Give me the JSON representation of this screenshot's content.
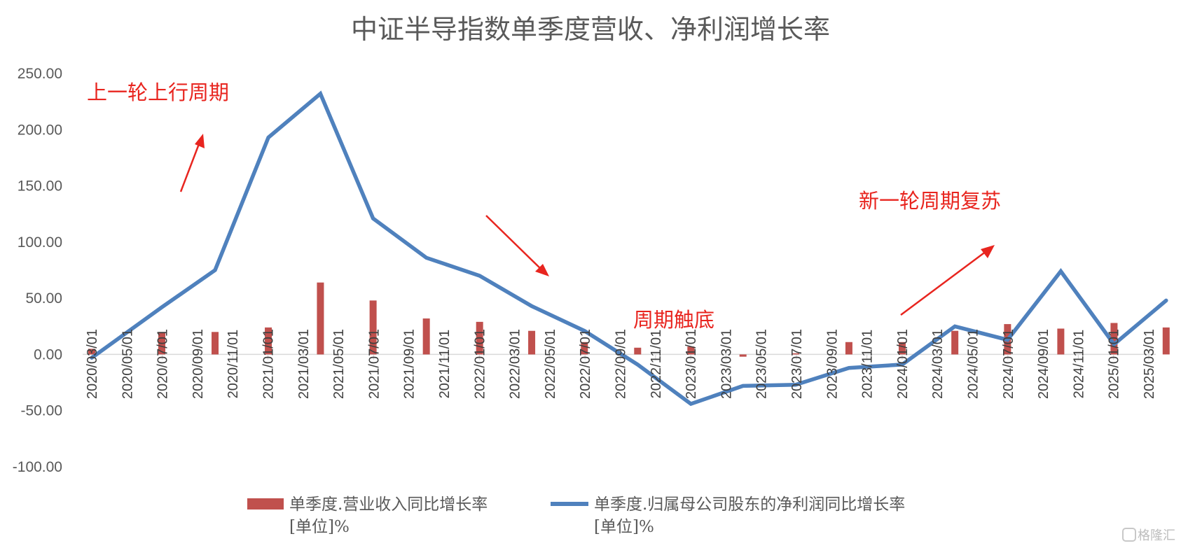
{
  "chart_data": {
    "type": "bar+line",
    "title": "中证半导指数单季度营收、净利润增长率",
    "ylim": [
      -100,
      250
    ],
    "yticks": [
      "250.00",
      "200.00",
      "150.00",
      "100.00",
      "50.00",
      "0.00",
      "-50.00",
      "-100.00"
    ],
    "ytick_values": [
      250,
      200,
      150,
      100,
      50,
      0,
      -50,
      -100
    ],
    "x_labels": [
      "2020/03/01",
      "2020/05/01",
      "2020/07/01",
      "2020/09/01",
      "2020/11/01",
      "2021/01/01",
      "2021/03/01",
      "2021/05/01",
      "2021/07/01",
      "2021/09/01",
      "2021/11/01",
      "2022/01/01",
      "2022/03/01",
      "2022/05/01",
      "2022/07/01",
      "2022/09/01",
      "2022/11/01",
      "2023/01/01",
      "2023/03/01",
      "2023/05/01",
      "2023/07/01",
      "2023/09/01",
      "2023/11/01",
      "2024/01/01",
      "2024/03/01",
      "2024/05/01",
      "2024/07/01",
      "2024/09/01",
      "2024/11/01",
      "2025/01/01",
      "2025/03/01"
    ],
    "grid": false,
    "legend_position": "bottom",
    "series": [
      {
        "name": "单季度.营业收入同比增长率 [单位]%",
        "legend_line1": "单季度.营业收入同比增长率",
        "legend_line2": "[单位]%",
        "type": "bar",
        "color": "#c0504d",
        "x": [
          "2020/03/01",
          "2020/06/30",
          "2020/09/30",
          "2020/12/31",
          "2021/03/31",
          "2021/06/30",
          "2021/09/30",
          "2021/12/31",
          "2022/03/31",
          "2022/06/30",
          "2022/09/30",
          "2022/12/31",
          "2023/03/31",
          "2023/06/30",
          "2023/09/30",
          "2023/12/31",
          "2024/03/31",
          "2024/06/30",
          "2024/09/30",
          "2024/12/31",
          "2025/03/31"
        ],
        "values": [
          5,
          20,
          20,
          24,
          64,
          48,
          32,
          29,
          21,
          11,
          6,
          7,
          -2,
          1,
          11,
          11,
          21,
          27,
          23,
          28,
          24
        ]
      },
      {
        "name": "单季度.归属母公司股东的净利润同比增长率 [单位]%",
        "legend_line1": "单季度.归属母公司股东的净利润同比增长率",
        "legend_line2": "[单位]%",
        "type": "line",
        "color": "#4f81bd",
        "x": [
          "2020/03/01",
          "2020/06/30",
          "2020/09/30",
          "2020/12/31",
          "2021/03/31",
          "2021/06/30",
          "2021/09/30",
          "2021/12/31",
          "2022/03/31",
          "2022/06/30",
          "2022/09/30",
          "2022/12/31",
          "2023/03/31",
          "2023/06/30",
          "2023/09/30",
          "2023/12/31",
          "2024/03/31",
          "2024/06/30",
          "2024/09/30",
          "2024/12/31",
          "2025/03/31"
        ],
        "values": [
          -3,
          42,
          75,
          193,
          232,
          121,
          86,
          70,
          43,
          21,
          -9,
          -44,
          -28,
          -27,
          -12,
          -9,
          25,
          13,
          74,
          9,
          48
        ]
      }
    ],
    "annotations": [
      {
        "text": "上一轮上行周期",
        "color": "#e8251f"
      },
      {
        "text": "周期触底",
        "color": "#e8251f"
      },
      {
        "text": "新一轮周期复苏",
        "color": "#e8251f"
      }
    ]
  }
}
